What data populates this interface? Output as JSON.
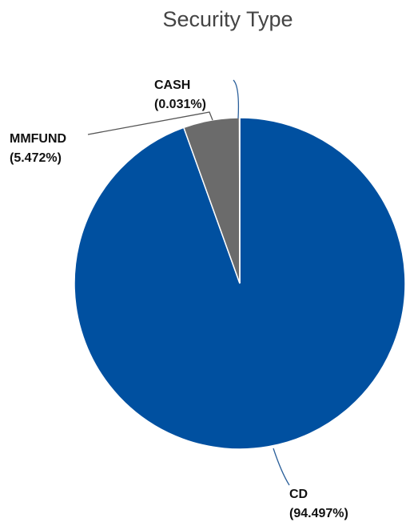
{
  "chart_data": {
    "type": "pie",
    "title": "Security Type",
    "categories": [
      "CD",
      "MMFUND",
      "CASH"
    ],
    "values": [
      94.497,
      5.472,
      0.031
    ],
    "value_labels": [
      "(94.497%)",
      "(5.472%)",
      "(0.031%)"
    ],
    "colors": [
      "#0050a0",
      "#6b6b6b",
      "#3a3a3a"
    ]
  }
}
